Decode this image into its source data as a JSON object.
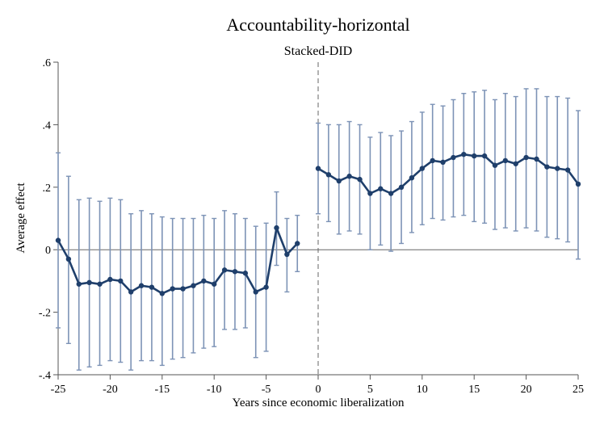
{
  "chart_data": {
    "type": "line",
    "title": "Accountability-horizontal",
    "subtitle": "Stacked-DID",
    "xlabel": "Years since economic liberalization",
    "ylabel": "Average effect",
    "xlim": [
      -25,
      25
    ],
    "ylim": [
      -0.4,
      0.6
    ],
    "x_ticks": [
      -25,
      -20,
      -15,
      -10,
      -5,
      0,
      5,
      10,
      15,
      20,
      25
    ],
    "x_tick_labels": [
      "-25",
      "-20",
      "-15",
      "-10",
      "-5",
      "0",
      "5",
      "10",
      "15",
      "20",
      "25"
    ],
    "y_ticks": [
      -0.4,
      -0.2,
      0,
      0.2,
      0.4,
      0.6
    ],
    "y_tick_labels": [
      "-.4",
      "-.2",
      "0",
      ".2",
      ".4",
      ".6"
    ],
    "reference_lines": {
      "horizontal_y": 0,
      "vertical_x": 0,
      "vertical_style": "dashed"
    },
    "colors": {
      "series": "#1f3f6b",
      "ci": "#7d93b6",
      "axis": "#555555",
      "reference": "#666666"
    },
    "series": [
      {
        "name": "Average effect",
        "x": [
          -25,
          -24,
          -23,
          -22,
          -21,
          -20,
          -19,
          -18,
          -17,
          -16,
          -15,
          -14,
          -13,
          -12,
          -11,
          -10,
          -9,
          -8,
          -7,
          -6,
          -5,
          -4,
          -3,
          -2,
          -1,
          0,
          1,
          2,
          3,
          4,
          5,
          6,
          7,
          8,
          9,
          10,
          11,
          12,
          13,
          14,
          15,
          16,
          17,
          18,
          19,
          20,
          21,
          22,
          23,
          24,
          25
        ],
        "y": [
          0.03,
          -0.03,
          -0.11,
          -0.105,
          -0.11,
          -0.095,
          -0.1,
          -0.135,
          -0.115,
          -0.12,
          -0.14,
          -0.125,
          -0.125,
          -0.115,
          -0.1,
          -0.11,
          -0.065,
          -0.07,
          -0.075,
          -0.135,
          -0.12,
          0.07,
          -0.015,
          0.02,
          null,
          0.26,
          0.24,
          0.22,
          0.235,
          0.225,
          0.18,
          0.195,
          0.18,
          0.2,
          0.23,
          0.26,
          0.285,
          0.28,
          0.295,
          0.305,
          0.3,
          0.3,
          0.27,
          0.285,
          0.275,
          0.295,
          0.29,
          0.265,
          0.26,
          0.255,
          0.21
        ],
        "ci_low": [
          -0.25,
          -0.3,
          -0.385,
          -0.375,
          -0.37,
          -0.355,
          -0.36,
          -0.385,
          -0.355,
          -0.355,
          -0.37,
          -0.35,
          -0.345,
          -0.33,
          -0.315,
          -0.31,
          -0.255,
          -0.255,
          -0.25,
          -0.345,
          -0.325,
          -0.05,
          -0.135,
          -0.07,
          null,
          0.115,
          0.09,
          0.05,
          0.06,
          0.05,
          0.0,
          0.015,
          -0.005,
          0.02,
          0.055,
          0.08,
          0.1,
          0.095,
          0.105,
          0.11,
          0.09,
          0.085,
          0.065,
          0.07,
          0.06,
          0.07,
          0.06,
          0.04,
          0.035,
          0.025,
          -0.03
        ],
        "ci_high": [
          0.31,
          0.235,
          0.16,
          0.165,
          0.155,
          0.165,
          0.16,
          0.115,
          0.125,
          0.115,
          0.105,
          0.1,
          0.1,
          0.1,
          0.11,
          0.1,
          0.125,
          0.115,
          0.1,
          0.075,
          0.085,
          0.185,
          0.1,
          0.11,
          null,
          0.405,
          0.4,
          0.4,
          0.41,
          0.4,
          0.36,
          0.375,
          0.365,
          0.38,
          0.41,
          0.44,
          0.465,
          0.46,
          0.48,
          0.5,
          0.505,
          0.51,
          0.48,
          0.5,
          0.49,
          0.515,
          0.515,
          0.49,
          0.49,
          0.485,
          0.445
        ]
      }
    ],
    "grid": false,
    "legend": "none"
  }
}
